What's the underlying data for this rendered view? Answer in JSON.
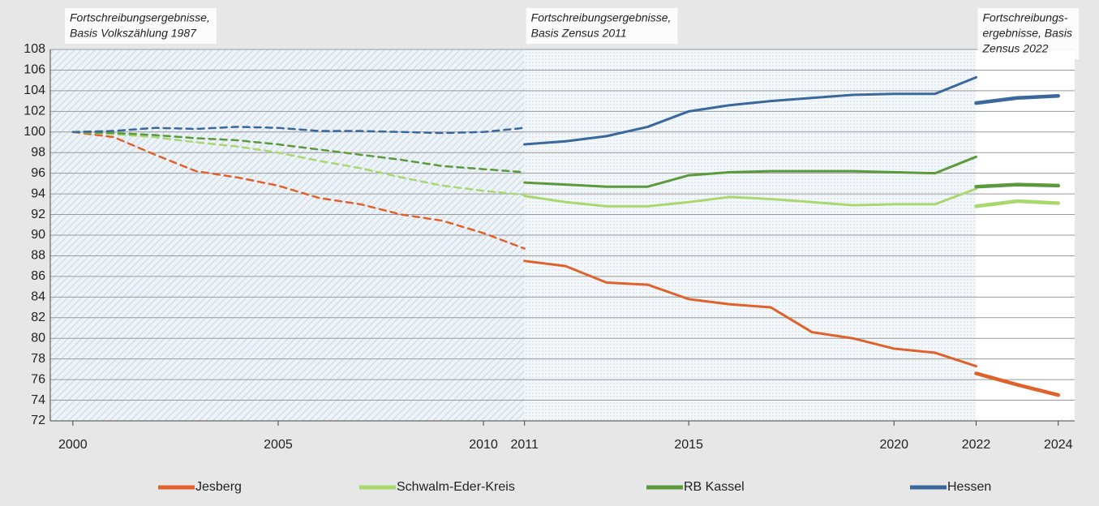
{
  "chart_data": {
    "type": "line",
    "xlim": [
      1999.45,
      2024.4
    ],
    "xticks": [
      2000,
      2005,
      2010,
      2011,
      2015,
      2020,
      2022,
      2024
    ],
    "ylim": [
      72,
      108
    ],
    "yticks": [
      72,
      74,
      76,
      78,
      80,
      82,
      84,
      86,
      88,
      90,
      92,
      94,
      96,
      98,
      100,
      102,
      104,
      106,
      108
    ],
    "grid": true,
    "periods": [
      {
        "label": [
          "Fortschreibungsergebnisse,",
          "Basis Volkszählung 1987"
        ],
        "style": "dashed",
        "x": [
          2000,
          2001,
          2002,
          2003,
          2004,
          2005,
          2006,
          2007,
          2008,
          2009,
          2010,
          2011
        ]
      },
      {
        "label": [
          "Fortschreibungsergebnisse,",
          "Basis Zensus 2011"
        ],
        "style": "solid",
        "x": [
          2011,
          2012,
          2013,
          2014,
          2015,
          2016,
          2017,
          2018,
          2019,
          2020,
          2021,
          2022
        ]
      },
      {
        "label": [
          "Fortschreibungs-",
          "ergebnisse, Basis",
          "Zensus 2022"
        ],
        "style": "bold",
        "x": [
          2022,
          2023,
          2024
        ]
      }
    ],
    "series": [
      {
        "name": "Jesberg",
        "color": "#e0622b",
        "segments": [
          {
            "values": [
              100,
              99.5,
              97.8,
              96.2,
              95.6,
              94.8,
              93.6,
              93.0,
              92.0,
              91.4,
              90.2,
              88.7
            ]
          },
          {
            "values": [
              87.5,
              87.0,
              85.4,
              85.2,
              83.8,
              83.3,
              83.0,
              80.6,
              80.0,
              79.0,
              78.6,
              77.3
            ]
          },
          {
            "values": [
              76.6,
              75.5,
              74.5
            ]
          }
        ]
      },
      {
        "name": "Schwalm-Eder-Kreis",
        "color": "#a8d86e",
        "segments": [
          {
            "values": [
              100,
              99.8,
              99.5,
              99.0,
              98.6,
              98.0,
              97.2,
              96.5,
              95.6,
              94.8,
              94.3,
              93.9
            ]
          },
          {
            "values": [
              93.8,
              93.2,
              92.8,
              92.8,
              93.2,
              93.7,
              93.5,
              93.2,
              92.9,
              93.0,
              93.0,
              94.5
            ]
          },
          {
            "values": [
              92.8,
              93.3,
              93.1
            ]
          }
        ]
      },
      {
        "name": "RB Kassel",
        "color": "#5b9a3c",
        "segments": [
          {
            "values": [
              100,
              99.9,
              99.7,
              99.4,
              99.2,
              98.8,
              98.3,
              97.8,
              97.3,
              96.7,
              96.4,
              96.1
            ]
          },
          {
            "values": [
              95.1,
              94.9,
              94.7,
              94.7,
              95.8,
              96.1,
              96.2,
              96.2,
              96.2,
              96.1,
              96.0,
              97.6
            ]
          },
          {
            "values": [
              94.7,
              94.9,
              94.8
            ]
          }
        ]
      },
      {
        "name": "Hessen",
        "color": "#3a679c",
        "segments": [
          {
            "values": [
              100,
              100.1,
              100.4,
              100.3,
              100.5,
              100.4,
              100.1,
              100.1,
              100.0,
              99.9,
              100.0,
              100.4
            ]
          },
          {
            "values": [
              98.8,
              99.1,
              99.6,
              100.5,
              102.0,
              102.6,
              103.0,
              103.3,
              103.6,
              103.7,
              103.7,
              105.3
            ]
          },
          {
            "values": [
              102.8,
              103.3,
              103.5
            ]
          }
        ]
      }
    ]
  }
}
